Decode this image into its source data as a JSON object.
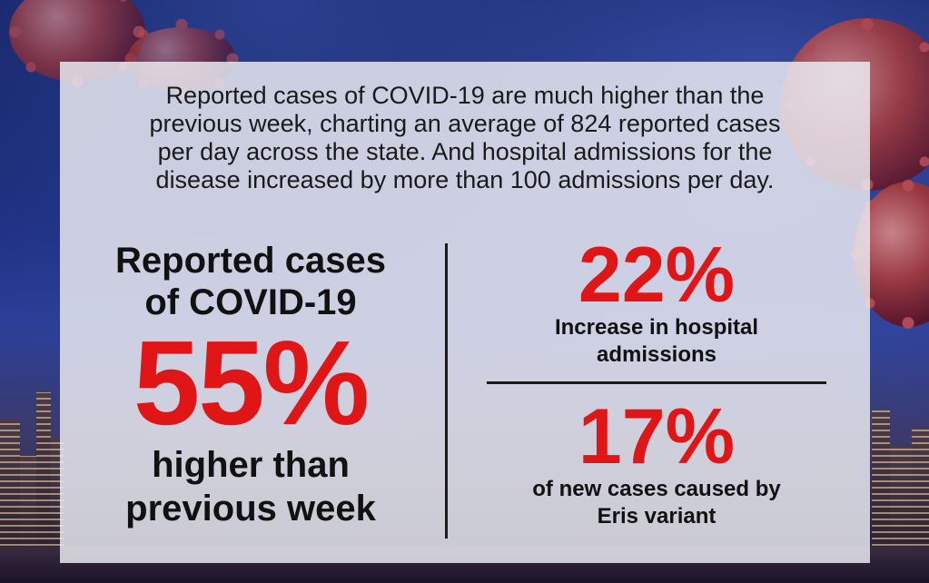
{
  "intro_text": "Reported cases of COVID-19 are much higher than the previous week, charting an average of 824 reported cases per day across the state. And hospital admissions for the disease increased by more than 100 admissions per day.",
  "intro_lines": [
    "Reported cases of COVID-19 are much higher than the",
    "previous week, charting an average of 824 reported cases",
    "per day across the state. And hospital admissions for the",
    "disease increased by more than 100 admissions per day."
  ],
  "main_stat": {
    "title_line1": "Reported cases",
    "title_line2": "of COVID-19",
    "value": "55%",
    "sub_line1": "higher than",
    "sub_line2": "previous week"
  },
  "stats": [
    {
      "value": "22%",
      "label_line1": "Increase in hospital",
      "label_line2": "admissions"
    },
    {
      "value": "17%",
      "label_line1": "of new cases caused by",
      "label_line2": "Eris variant"
    }
  ],
  "colors": {
    "accent_red": "#e01515",
    "text_dark": "#111111",
    "panel_bg": "#ececf2",
    "sky_blue": "#1b2a7a"
  }
}
